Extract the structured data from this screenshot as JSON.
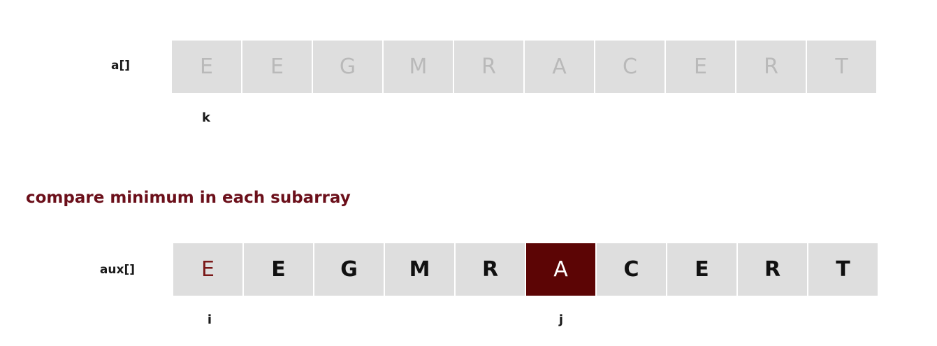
{
  "array_a": {
    "label": "a[]",
    "cells": [
      "E",
      "E",
      "G",
      "M",
      "R",
      "A",
      "C",
      "E",
      "R",
      "T"
    ]
  },
  "pointer_k": "k",
  "caption": "compare minimum in each subarray",
  "array_aux": {
    "label": "aux[]",
    "cells": [
      "E",
      "E",
      "G",
      "M",
      "R",
      "A",
      "C",
      "E",
      "R",
      "T"
    ]
  },
  "pointer_i": "i",
  "pointer_j": "j",
  "colors": {
    "cell_bg": "#dedede",
    "highlight_fill": "#5c0505",
    "highlight_text": "#7a1818",
    "caption": "#6b0f1a"
  }
}
